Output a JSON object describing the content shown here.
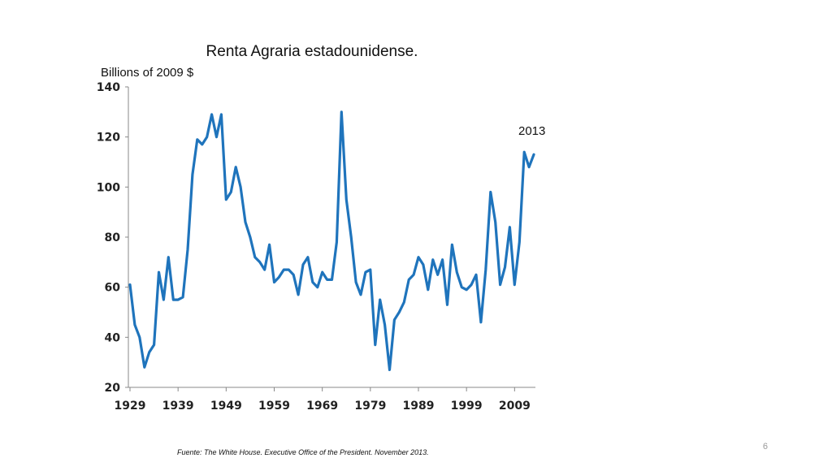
{
  "chart_data": {
    "type": "line",
    "title": "Renta Agraria estadounidense.",
    "y_label": "Billions of  2009 $",
    "annotation": "2013",
    "x": [
      1929,
      1930,
      1931,
      1932,
      1933,
      1934,
      1935,
      1936,
      1937,
      1938,
      1939,
      1940,
      1941,
      1942,
      1943,
      1944,
      1945,
      1946,
      1947,
      1948,
      1949,
      1950,
      1951,
      1952,
      1953,
      1954,
      1955,
      1956,
      1957,
      1958,
      1959,
      1960,
      1961,
      1962,
      1963,
      1964,
      1965,
      1966,
      1967,
      1968,
      1969,
      1970,
      1971,
      1972,
      1973,
      1974,
      1975,
      1976,
      1977,
      1978,
      1979,
      1980,
      1981,
      1982,
      1983,
      1984,
      1985,
      1986,
      1987,
      1988,
      1989,
      1990,
      1991,
      1992,
      1993,
      1994,
      1995,
      1996,
      1997,
      1998,
      1999,
      2000,
      2001,
      2002,
      2003,
      2004,
      2005,
      2006,
      2007,
      2008,
      2009,
      2010,
      2011,
      2012,
      2013
    ],
    "series": [
      {
        "color": "#1f74bc",
        "values": [
          61,
          45,
          40,
          28,
          34,
          37,
          66,
          55,
          72,
          55,
          55,
          56,
          75,
          105,
          119,
          117,
          120,
          129,
          120,
          129,
          95,
          98,
          108,
          100,
          86,
          80,
          72,
          70,
          67,
          77,
          62,
          64,
          67,
          67,
          65,
          57,
          69,
          72,
          62,
          60,
          66,
          63,
          63,
          78,
          130,
          95,
          80,
          62,
          57,
          66,
          67,
          37,
          55,
          45,
          27,
          47,
          50,
          54,
          63,
          65,
          72,
          69,
          59,
          71,
          65,
          71,
          53,
          77,
          66,
          60,
          59,
          61,
          65,
          46,
          67,
          98,
          86,
          61,
          68,
          84,
          61,
          78,
          114,
          108,
          113
        ]
      }
    ],
    "xlim": [
      1929,
      2013
    ],
    "xticks": [
      1929,
      1939,
      1949,
      1959,
      1969,
      1979,
      1989,
      1999,
      2009
    ],
    "ylim": [
      20,
      140
    ],
    "yticks": [
      20,
      40,
      60,
      80,
      100,
      120,
      140
    ]
  },
  "footer": {
    "source": "Fuente: The White House. Executive Office of the President. November 2013.",
    "page_number": 6
  }
}
